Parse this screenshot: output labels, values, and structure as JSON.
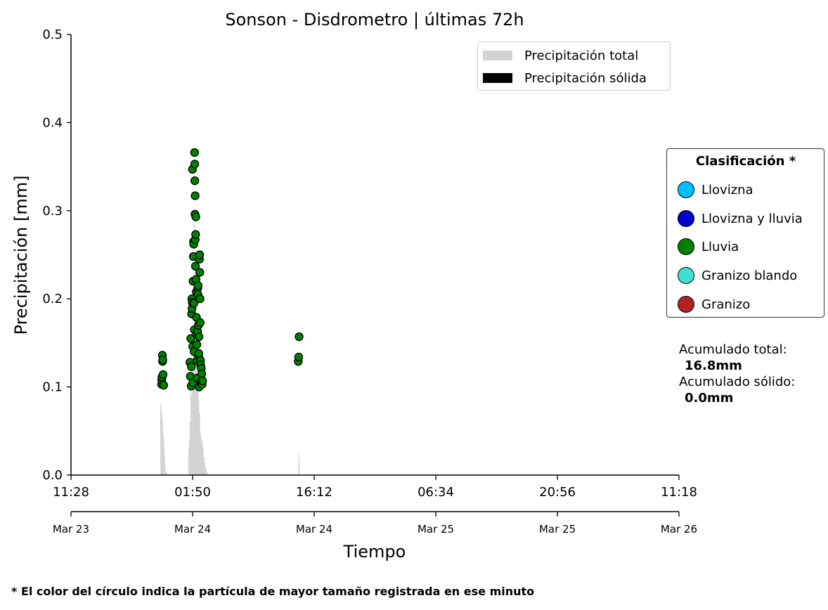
{
  "title": "Sonson - Disdrometro  |  últimas 72h",
  "ylabel": "Precipitación [mm]",
  "xlabel": "Tiempo",
  "footnote": "* El color del círculo indica la partícula de mayor tamaño registrada en ese minuto",
  "legend": {
    "items": [
      {
        "label": "Precipitación total",
        "color": "#d3d3d3"
      },
      {
        "label": "Precipitación sólida",
        "color": "#000000"
      }
    ]
  },
  "classification": {
    "title": "Clasificación *",
    "items": [
      {
        "label": "Llovizna",
        "color": "#00bfff"
      },
      {
        "label": "Llovizna y lluvia",
        "color": "#0000cd"
      },
      {
        "label": "Lluvia",
        "color": "#008000"
      },
      {
        "label": "Granizo blando",
        "color": "#40e0d0"
      },
      {
        "label": "Granizo",
        "color": "#b22222"
      }
    ]
  },
  "accumulated": {
    "total_label": "Acumulado total:",
    "total_value": "16.8mm",
    "solid_label": "Acumulado sólido:",
    "solid_value": "0.0mm"
  },
  "chart_data": {
    "type": "bar",
    "title": "Sonson - Disdrometro  |  últimas 72h",
    "xlabel": "Tiempo",
    "ylabel": "Precipitación [mm]",
    "ylim": [
      0,
      0.5
    ],
    "y_ticks": [
      "0.0",
      "0.1",
      "0.2",
      "0.3",
      "0.4",
      "0.5"
    ],
    "x_range_hours": [
      0,
      71.83
    ],
    "x_ticks_time": [
      {
        "hours": 0,
        "label": "11:28"
      },
      {
        "hours": 14.37,
        "label": "01:50"
      },
      {
        "hours": 28.73,
        "label": "16:12"
      },
      {
        "hours": 43.1,
        "label": "06:34"
      },
      {
        "hours": 57.47,
        "label": "20:56"
      },
      {
        "hours": 71.83,
        "label": "11:18"
      }
    ],
    "x_ticks_date": [
      "Mar 23",
      "Mar 24",
      "Mar 24",
      "Mar 25",
      "Mar 25",
      "Mar 26"
    ],
    "grid": false,
    "legend_position": "upper right",
    "series": [
      {
        "name": "Precipitación total",
        "color": "#d3d3d3",
        "bars": [
          [
            10.6,
            0.08
          ],
          [
            10.65,
            0.075
          ],
          [
            10.7,
            0.07
          ],
          [
            10.75,
            0.065
          ],
          [
            10.8,
            0.06
          ],
          [
            10.85,
            0.05
          ],
          [
            10.9,
            0.045
          ],
          [
            10.95,
            0.04
          ],
          [
            11.0,
            0.03
          ],
          [
            11.05,
            0.02
          ],
          [
            11.1,
            0.01
          ],
          [
            11.2,
            0.005
          ],
          [
            11.3,
            0.003
          ],
          [
            13.9,
            0.03
          ],
          [
            14.0,
            0.04
          ],
          [
            14.05,
            0.06
          ],
          [
            14.1,
            0.045
          ],
          [
            14.15,
            0.1
          ],
          [
            14.2,
            0.06
          ],
          [
            14.25,
            0.09
          ],
          [
            14.3,
            0.05
          ],
          [
            14.35,
            0.12
          ],
          [
            14.4,
            0.08
          ],
          [
            14.45,
            0.1
          ],
          [
            14.5,
            0.16
          ],
          [
            14.55,
            0.11
          ],
          [
            14.6,
            0.3
          ],
          [
            14.65,
            0.12
          ],
          [
            14.7,
            0.14
          ],
          [
            14.75,
            0.1
          ],
          [
            14.8,
            0.13
          ],
          [
            14.85,
            0.09
          ],
          [
            14.9,
            0.11
          ],
          [
            14.95,
            0.08
          ],
          [
            15.0,
            0.1
          ],
          [
            15.05,
            0.07
          ],
          [
            15.1,
            0.085
          ],
          [
            15.15,
            0.06
          ],
          [
            15.2,
            0.07
          ],
          [
            15.25,
            0.05
          ],
          [
            15.3,
            0.045
          ],
          [
            15.35,
            0.04
          ],
          [
            15.4,
            0.035
          ],
          [
            15.45,
            0.03
          ],
          [
            15.5,
            0.04
          ],
          [
            15.55,
            0.02
          ],
          [
            15.6,
            0.03
          ],
          [
            15.65,
            0.015
          ],
          [
            15.7,
            0.02
          ],
          [
            15.75,
            0.01
          ],
          [
            15.8,
            0.015
          ],
          [
            15.9,
            0.008
          ],
          [
            16.0,
            0.005
          ],
          [
            16.1,
            0.003
          ],
          [
            26.9,
            0.025
          ],
          [
            26.95,
            0.015
          ]
        ]
      },
      {
        "name": "Precipitación sólida",
        "color": "#000000",
        "bars": []
      },
      {
        "name": "Lluvia",
        "type": "scatter",
        "color": "#008000",
        "points": [
          [
            10.7,
            0.103
          ],
          [
            10.72,
            0.108
          ],
          [
            10.75,
            0.111
          ],
          [
            10.8,
            0.136
          ],
          [
            10.82,
            0.129
          ],
          [
            10.85,
            0.131
          ],
          [
            10.88,
            0.114
          ],
          [
            10.95,
            0.102
          ],
          [
            14.05,
            0.128
          ],
          [
            14.1,
            0.112
          ],
          [
            14.15,
            0.155
          ],
          [
            14.2,
            0.101
          ],
          [
            14.22,
            0.123
          ],
          [
            14.25,
            0.183
          ],
          [
            14.28,
            0.2
          ],
          [
            14.3,
            0.189
          ],
          [
            14.32,
            0.196
          ],
          [
            14.35,
            0.347
          ],
          [
            14.38,
            0.146
          ],
          [
            14.4,
            0.105
          ],
          [
            14.42,
            0.22
          ],
          [
            14.45,
            0.248
          ],
          [
            14.48,
            0.265
          ],
          [
            14.5,
            0.262
          ],
          [
            14.52,
            0.195
          ],
          [
            14.55,
            0.14
          ],
          [
            14.58,
            0.165
          ],
          [
            14.6,
            0.366
          ],
          [
            14.62,
            0.353
          ],
          [
            14.63,
            0.334
          ],
          [
            14.65,
            0.296
          ],
          [
            14.67,
            0.317
          ],
          [
            14.68,
            0.267
          ],
          [
            14.7,
            0.237
          ],
          [
            14.72,
            0.273
          ],
          [
            14.75,
            0.293
          ],
          [
            14.77,
            0.222
          ],
          [
            14.8,
            0.208
          ],
          [
            14.82,
            0.179
          ],
          [
            14.85,
            0.16
          ],
          [
            14.87,
            0.148
          ],
          [
            14.9,
            0.13
          ],
          [
            14.92,
            0.11
          ],
          [
            14.95,
            0.163
          ],
          [
            14.98,
            0.212
          ],
          [
            15.0,
            0.205
          ],
          [
            15.02,
            0.215
          ],
          [
            15.05,
            0.17
          ],
          [
            15.08,
            0.135
          ],
          [
            15.1,
            0.138
          ],
          [
            15.12,
            0.157
          ],
          [
            15.15,
            0.1
          ],
          [
            15.18,
            0.245
          ],
          [
            15.2,
            0.25
          ],
          [
            15.22,
            0.23
          ],
          [
            15.25,
            0.2
          ],
          [
            15.27,
            0.173
          ],
          [
            15.3,
            0.13
          ],
          [
            15.32,
            0.125
          ],
          [
            15.35,
            0.105
          ],
          [
            15.4,
            0.121
          ],
          [
            15.45,
            0.115
          ],
          [
            15.5,
            0.103
          ],
          [
            15.55,
            0.107
          ],
          [
            26.85,
            0.129
          ],
          [
            26.9,
            0.134
          ],
          [
            26.95,
            0.157
          ]
        ]
      }
    ]
  }
}
